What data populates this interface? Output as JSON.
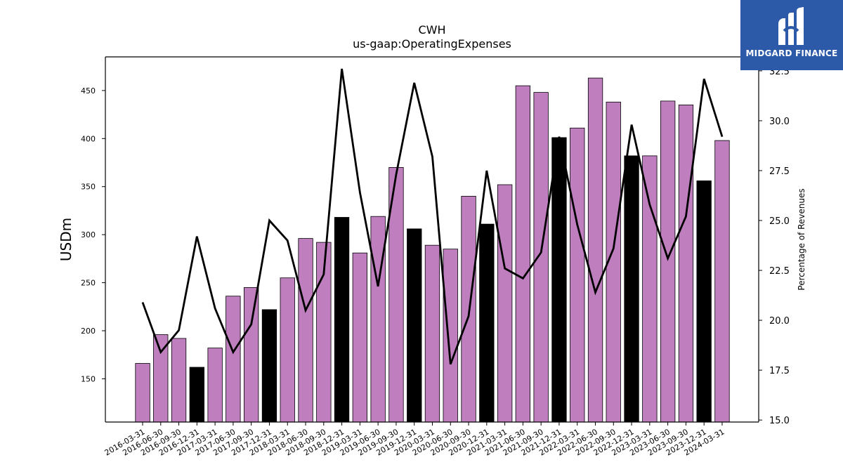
{
  "chart_data": {
    "type": "bar",
    "title": "CWH",
    "subtitle": "us-gaap:OperatingExpenses",
    "ylabel": "USDm",
    "y2label": "Percentage of Revenues",
    "ylim": [
      105,
      485
    ],
    "y2lim": [
      14.9,
      33.2
    ],
    "yticks": [
      150,
      200,
      250,
      300,
      350,
      400,
      450
    ],
    "y2ticks": [
      15.0,
      17.5,
      20.0,
      22.5,
      25.0,
      27.5,
      30.0,
      32.5
    ],
    "y2tick_labels": [
      "15.0",
      "17.5",
      "20.0",
      "22.5",
      "25.0",
      "27.5",
      "30.0",
      "32.5"
    ],
    "categories": [
      "2016-03-31",
      "2016-06-30",
      "2016-09-30",
      "2016-12-31",
      "2017-03-31",
      "2017-06-30",
      "2017-09-30",
      "2017-12-31",
      "2018-03-31",
      "2018-06-30",
      "2018-09-30",
      "2018-12-31",
      "2019-03-31",
      "2019-06-30",
      "2019-09-30",
      "2019-12-31",
      "2020-03-31",
      "2020-06-30",
      "2020-09-30",
      "2020-12-31",
      "2021-03-31",
      "2021-06-30",
      "2021-09-30",
      "2021-12-31",
      "2022-03-31",
      "2022-06-30",
      "2022-09-30",
      "2022-12-31",
      "2023-03-31",
      "2023-06-30",
      "2023-09-30",
      "2023-12-31",
      "2024-03-31"
    ],
    "series": [
      {
        "type": "bar",
        "axis": "left",
        "values": [
          166,
          196,
          192,
          162,
          182,
          236,
          245,
          222,
          255,
          296,
          292,
          318,
          281,
          319,
          370,
          306,
          289,
          285,
          340,
          311,
          352,
          455,
          448,
          401,
          411,
          463,
          438,
          382,
          382,
          439,
          435,
          356,
          398
        ],
        "colors": [
          "#bf7fbf",
          "#bf7fbf",
          "#bf7fbf",
          "#000000",
          "#bf7fbf",
          "#bf7fbf",
          "#bf7fbf",
          "#000000",
          "#bf7fbf",
          "#bf7fbf",
          "#bf7fbf",
          "#000000",
          "#bf7fbf",
          "#bf7fbf",
          "#bf7fbf",
          "#000000",
          "#bf7fbf",
          "#bf7fbf",
          "#bf7fbf",
          "#000000",
          "#bf7fbf",
          "#bf7fbf",
          "#bf7fbf",
          "#000000",
          "#bf7fbf",
          "#bf7fbf",
          "#bf7fbf",
          "#000000",
          "#bf7fbf",
          "#bf7fbf",
          "#bf7fbf",
          "#000000",
          "#bf7fbf"
        ]
      },
      {
        "type": "line",
        "axis": "right",
        "color": "#000000",
        "values": [
          20.9,
          18.4,
          19.5,
          24.2,
          20.6,
          18.4,
          19.8,
          25.0,
          24.0,
          20.5,
          22.3,
          32.6,
          26.4,
          21.7,
          27.3,
          31.9,
          28.2,
          17.8,
          20.2,
          27.5,
          22.6,
          22.1,
          23.4,
          29.2,
          24.8,
          21.4,
          23.6,
          29.8,
          25.8,
          23.1,
          25.2,
          32.1,
          29.2
        ]
      }
    ],
    "grid": false,
    "legend": "none"
  },
  "logo": {
    "text": "MIDGARD FINANCE",
    "background": "#2c5aa8"
  }
}
